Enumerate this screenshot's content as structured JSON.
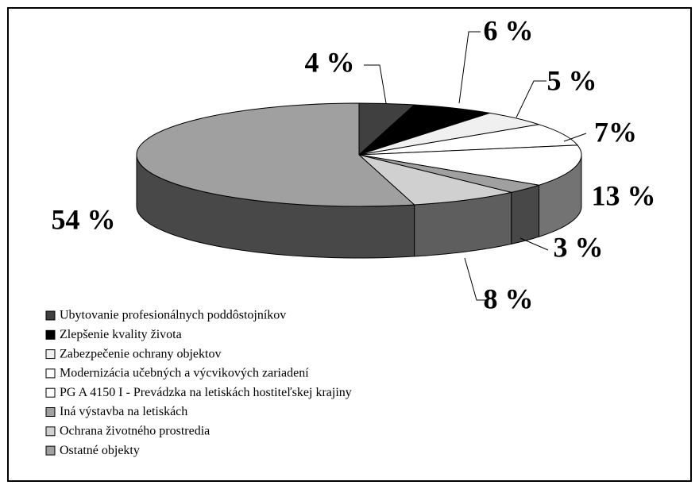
{
  "chart_data": {
    "type": "pie3d",
    "categories": [
      "Ubytovanie profesionálnych poddôstojníkov",
      "Zlepšenie kvality života",
      "Zabezpečenie ochrany objektov",
      "Modernizácia učebných a výcvikových zariadení",
      "PG A 4150 I - Prevádzka na letiskách hostiteľskej krajiny",
      "Iná výstavba na letiskách",
      "Ochrana životného prostredia",
      "Ostatné objekty"
    ],
    "values": [
      4,
      6,
      5,
      7,
      13,
      3,
      8,
      54
    ],
    "value_labels": [
      "4 %",
      "6 %",
      "5 %",
      "7%",
      "13 %",
      "3 %",
      "8 %",
      "54 %"
    ],
    "colors": [
      "#404040",
      "#000000",
      "#f0f0f0",
      "#ffffff",
      "#ffffff",
      "#a0a0a0",
      "#d0d0d0",
      "#a0a0a0"
    ],
    "legend": "bottom-left"
  }
}
